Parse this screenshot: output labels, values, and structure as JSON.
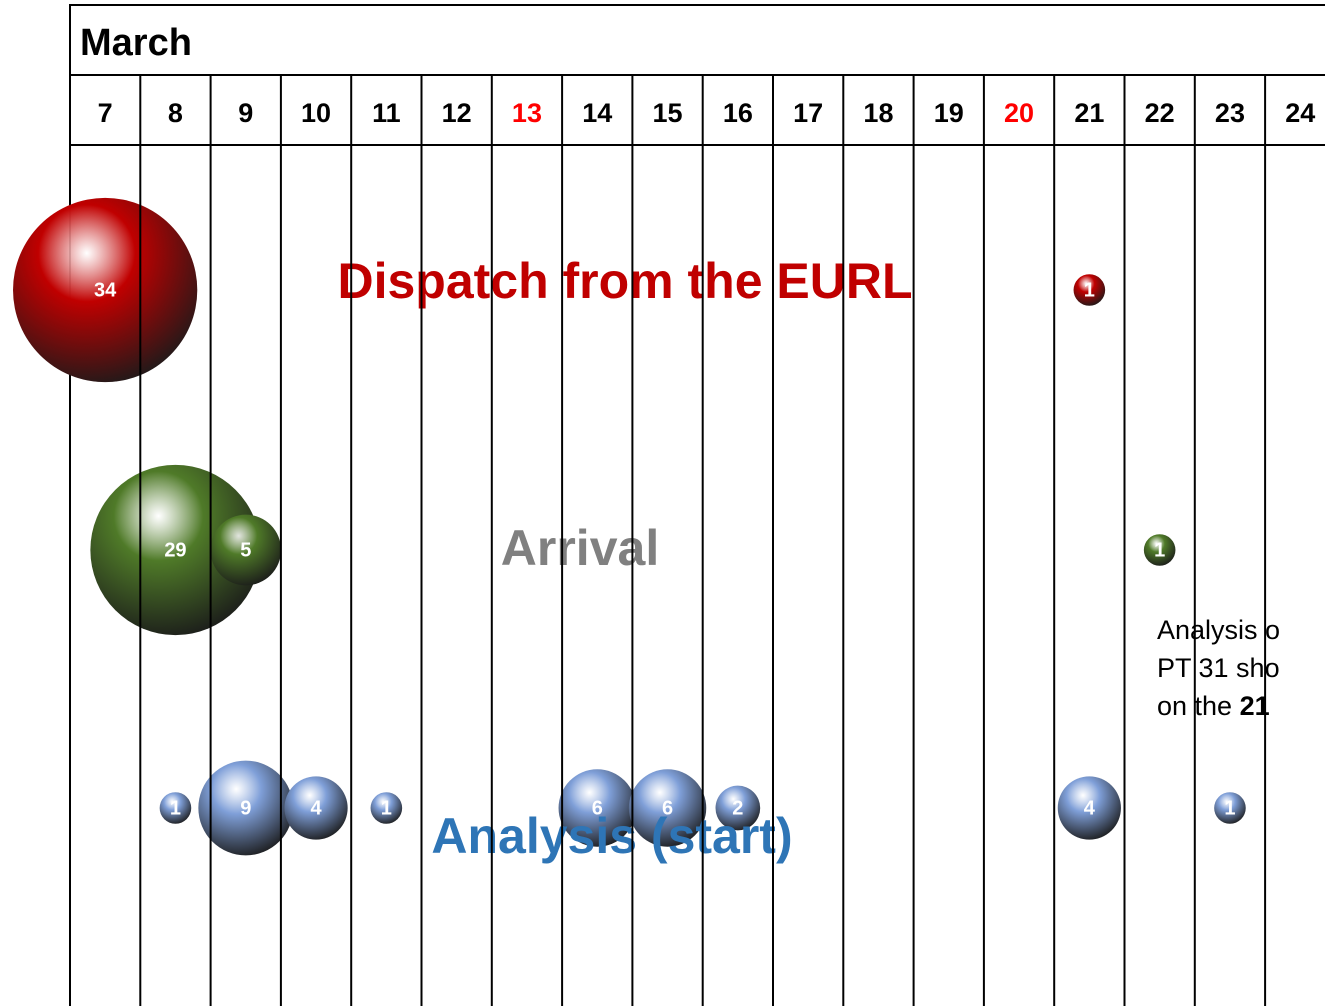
{
  "chart_data": {
    "type": "bubble",
    "title": "March",
    "categories": [
      7,
      8,
      9,
      10,
      11,
      12,
      13,
      14,
      15,
      16,
      17,
      18,
      19,
      20,
      21,
      22,
      23,
      24
    ],
    "category_colors": [
      "#000000",
      "#000000",
      "#000000",
      "#000000",
      "#000000",
      "#000000",
      "#ff0000",
      "#000000",
      "#000000",
      "#000000",
      "#000000",
      "#000000",
      "#000000",
      "#ff0000",
      "#000000",
      "#000000",
      "#000000",
      "#000000"
    ],
    "series": [
      {
        "name": "Dispatch from the EURL",
        "color": "#c00000",
        "label_color": "#c00000",
        "values": [
          34,
          null,
          null,
          null,
          null,
          null,
          null,
          null,
          null,
          null,
          null,
          null,
          null,
          null,
          1,
          null,
          null,
          null
        ]
      },
      {
        "name": "Arrival",
        "color": "#4f7a28",
        "label_color": "#808080",
        "values": [
          null,
          29,
          5,
          null,
          null,
          null,
          null,
          null,
          null,
          null,
          null,
          null,
          null,
          null,
          null,
          1,
          null,
          null
        ]
      },
      {
        "name": "Analysis (start)",
        "color": "#7f9fd8",
        "label_color": "#2e75b6",
        "values": [
          null,
          1,
          9,
          4,
          1,
          null,
          null,
          6,
          6,
          2,
          null,
          null,
          null,
          null,
          4,
          null,
          1,
          null
        ]
      }
    ],
    "annotation": {
      "lines": [
        "Analysis o",
        "PT 31 sho"
      ],
      "last": "on the ",
      "bold": "21"
    }
  }
}
